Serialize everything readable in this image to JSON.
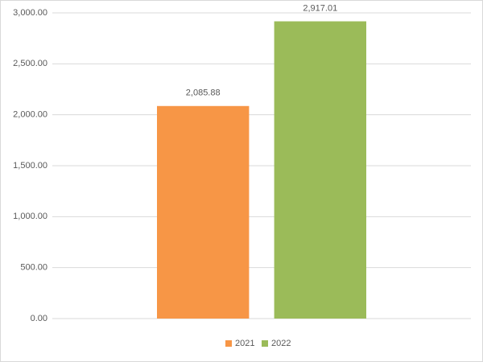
{
  "chart_data": {
    "type": "bar",
    "categories": [
      null
    ],
    "series": [
      {
        "name": "2021",
        "color": "#f79646",
        "values": [
          2085.88
        ],
        "value_labels": [
          "2,085.88"
        ]
      },
      {
        "name": "2022",
        "color": "#9bbb59",
        "values": [
          2917.01
        ],
        "value_labels": [
          "2,917.01"
        ]
      }
    ],
    "ylim": [
      0,
      3000
    ],
    "yticks": [
      {
        "value": 0,
        "label": "0.00"
      },
      {
        "value": 500,
        "label": "500.00"
      },
      {
        "value": 1000,
        "label": "1,000.00"
      },
      {
        "value": 1500,
        "label": "1,500.00"
      },
      {
        "value": 2000,
        "label": "2,000.00"
      },
      {
        "value": 2500,
        "label": "2,500.00"
      },
      {
        "value": 3000,
        "label": "3,000.00"
      }
    ],
    "grid": true,
    "legend": "bottom"
  }
}
